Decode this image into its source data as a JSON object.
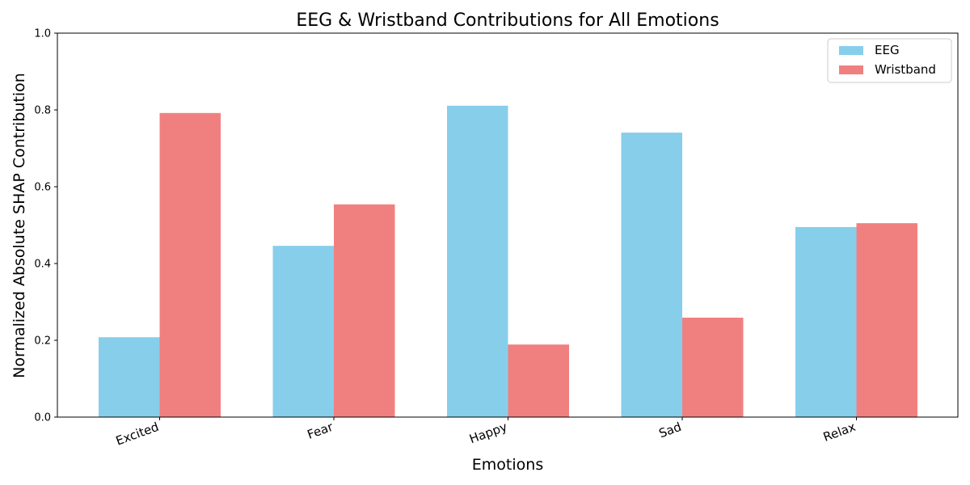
{
  "chart_data": {
    "type": "bar",
    "title": "EEG & Wristband Contributions for All Emotions",
    "xlabel": "Emotions",
    "ylabel": "Normalized Absolute SHAP Contribution",
    "categories": [
      "Excited",
      "Fear",
      "Happy",
      "Sad",
      "Relax"
    ],
    "series": [
      {
        "name": "EEG",
        "color": "#87CEEB",
        "values": [
          0.208,
          0.446,
          0.811,
          0.741,
          0.495
        ]
      },
      {
        "name": "Wristband",
        "color": "#F08080",
        "values": [
          0.792,
          0.554,
          0.189,
          0.259,
          0.505
        ]
      }
    ],
    "ylim": [
      0,
      1.0
    ],
    "yticks": [
      "0.0",
      "0.2",
      "0.4",
      "0.6",
      "0.8",
      "1.0"
    ],
    "grid": false,
    "legend": "top-right"
  }
}
